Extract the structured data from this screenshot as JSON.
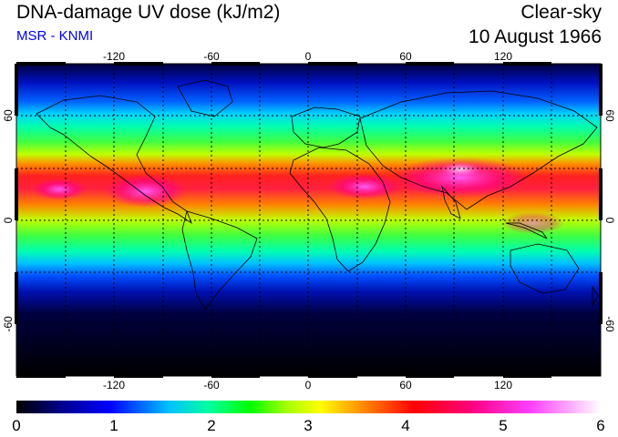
{
  "header": {
    "title": "DNA-damage UV dose (kJ/m2)",
    "source": "MSR - KNMI",
    "condition": "Clear-sky",
    "date": "10 August 1966"
  },
  "map": {
    "projection": "equirectangular",
    "lon_ticks": [
      "-120",
      "-60",
      "0",
      "60",
      "120"
    ],
    "lat_ticks": [
      "60",
      "0",
      "-60"
    ],
    "lat_labels_right": [
      "60",
      "0",
      "-60"
    ],
    "coastlines": "black"
  },
  "colorbar": {
    "labels": [
      "0",
      "1",
      "2",
      "3",
      "4",
      "5",
      "6"
    ],
    "range": [
      0,
      6
    ],
    "colors": [
      "#000000",
      "#000090",
      "#0000ff",
      "#00c0ff",
      "#00ffa0",
      "#00ff00",
      "#a0ff00",
      "#ffff00",
      "#ff8000",
      "#ff0000",
      "#ff0080",
      "#ff40ff",
      "#ffffff"
    ]
  }
}
